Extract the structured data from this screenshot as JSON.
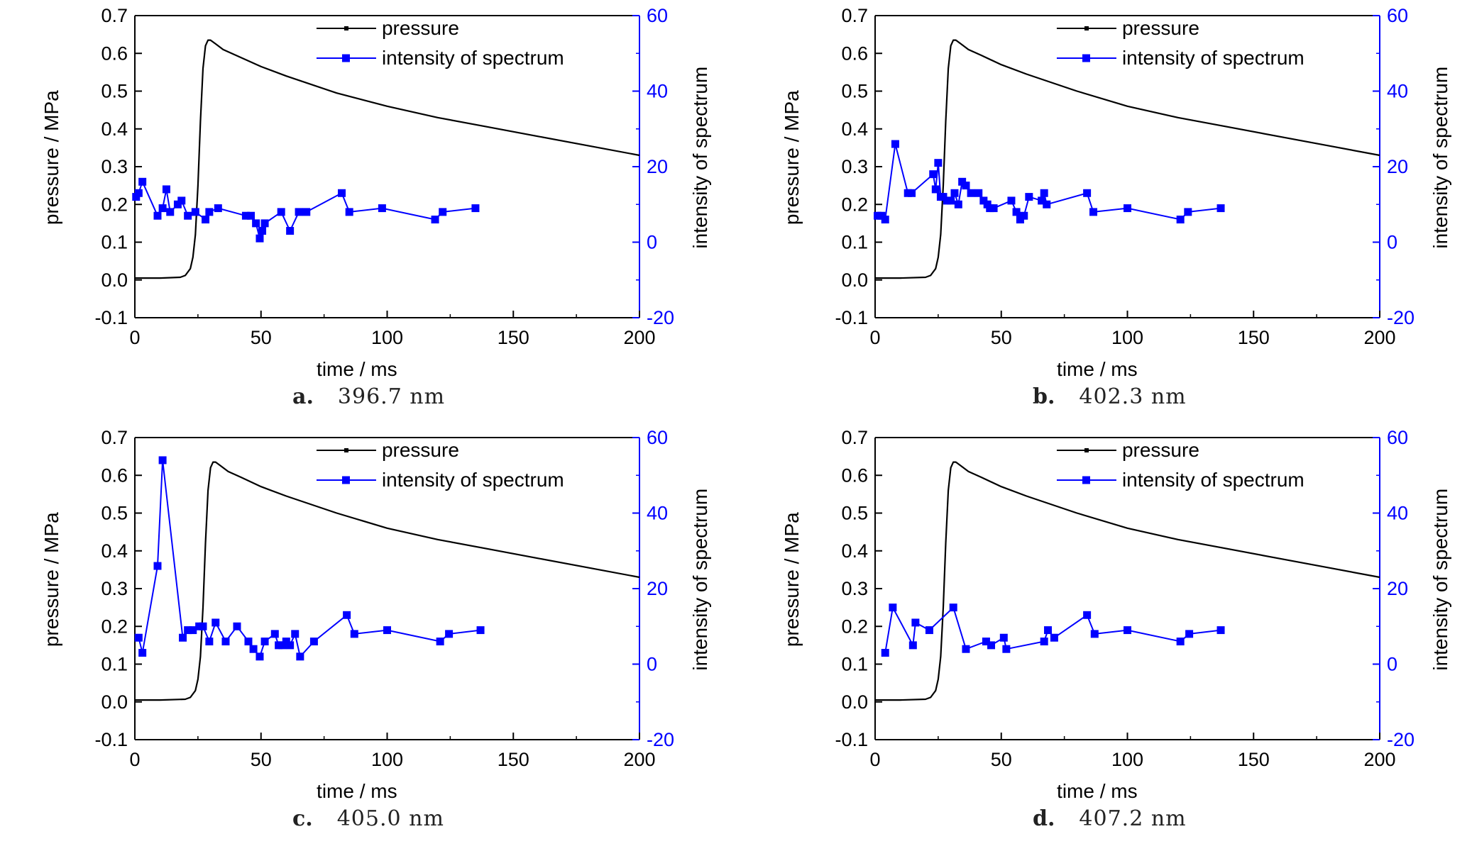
{
  "chart_data": [
    {
      "type": "line",
      "caption_letter": "a.",
      "caption_value": "396.7 nm",
      "xlabel": "time / ms",
      "ylabel": "pressure / MPa",
      "y2label": "intensity of spectrum",
      "xlim": [
        0,
        200
      ],
      "ylim": [
        -0.1,
        0.7
      ],
      "y2lim": [
        -20,
        60
      ],
      "xticks": [
        "0",
        "50",
        "100",
        "150",
        "200"
      ],
      "yticks": [
        "-0.1",
        "0.0",
        "0.1",
        "0.2",
        "0.3",
        "0.4",
        "0.5",
        "0.6",
        "0.7"
      ],
      "y2ticks": [
        "-20",
        "0",
        "20",
        "40",
        "60"
      ],
      "grid": false,
      "legend_position": "top-center",
      "series": [
        {
          "name": "pressure",
          "axis": "left",
          "color": "#000000",
          "x": [
            0,
            10,
            18,
            20,
            22,
            23,
            24,
            25,
            26,
            27,
            28,
            29,
            30,
            32,
            35,
            40,
            50,
            60,
            80,
            100,
            120,
            140,
            160,
            180,
            200
          ],
          "y": [
            0.005,
            0.005,
            0.007,
            0.012,
            0.03,
            0.06,
            0.12,
            0.25,
            0.42,
            0.56,
            0.62,
            0.635,
            0.635,
            0.625,
            0.61,
            0.595,
            0.565,
            0.54,
            0.495,
            0.46,
            0.43,
            0.405,
            0.38,
            0.355,
            0.33
          ]
        },
        {
          "name": "intensity of spectrum",
          "axis": "right",
          "color": "#0000ff",
          "marker": "square",
          "x": [
            0.5,
            1.5,
            3,
            9,
            11,
            12.5,
            14,
            17,
            18.5,
            21,
            24,
            28,
            29.5,
            33,
            44,
            46,
            48,
            49.5,
            50.5,
            51.5,
            58,
            61.5,
            65,
            68,
            82,
            85,
            98,
            119,
            122,
            135
          ],
          "y": [
            12,
            13,
            16,
            7,
            9,
            14,
            8,
            10,
            11,
            7,
            8,
            6,
            8,
            9,
            7,
            7,
            5,
            1,
            3,
            5,
            8,
            3,
            8,
            8,
            13,
            8,
            9,
            6,
            8,
            9
          ]
        }
      ]
    },
    {
      "type": "line",
      "caption_letter": "b.",
      "caption_value": "402.3 nm",
      "xlabel": "time / ms",
      "ylabel": "pressure / MPa",
      "y2label": "intensity of spectrum",
      "xlim": [
        0,
        200
      ],
      "ylim": [
        -0.1,
        0.7
      ],
      "y2lim": [
        -20,
        60
      ],
      "xticks": [
        "0",
        "50",
        "100",
        "150",
        "200"
      ],
      "yticks": [
        "-0.1",
        "0.0",
        "0.1",
        "0.2",
        "0.3",
        "0.4",
        "0.5",
        "0.6",
        "0.7"
      ],
      "y2ticks": [
        "-20",
        "0",
        "20",
        "40",
        "60"
      ],
      "grid": false,
      "legend_position": "top-center",
      "series": [
        {
          "name": "pressure",
          "axis": "left",
          "color": "#000000",
          "x": [
            0,
            10,
            20,
            22,
            24,
            25,
            26,
            27,
            28,
            29,
            30,
            31,
            32,
            34,
            37,
            42,
            50,
            60,
            80,
            100,
            120,
            140,
            160,
            180,
            200
          ],
          "y": [
            0.005,
            0.005,
            0.007,
            0.012,
            0.03,
            0.06,
            0.12,
            0.25,
            0.42,
            0.56,
            0.62,
            0.635,
            0.635,
            0.625,
            0.61,
            0.595,
            0.57,
            0.545,
            0.5,
            0.46,
            0.43,
            0.405,
            0.38,
            0.355,
            0.33
          ]
        },
        {
          "name": "intensity of spectrum",
          "axis": "right",
          "color": "#0000ff",
          "marker": "square",
          "x": [
            1,
            2.5,
            4,
            8,
            13,
            14.5,
            23,
            24,
            25,
            26,
            27,
            28.5,
            30,
            31.5,
            33,
            34.5,
            36,
            38,
            41,
            43,
            44.5,
            45.5,
            47,
            54,
            56,
            57.5,
            59,
            61,
            66,
            67,
            68,
            84,
            86.5,
            100,
            121,
            124,
            137
          ],
          "y": [
            7,
            7,
            6,
            26,
            13,
            13,
            18,
            14,
            21,
            12,
            12,
            11,
            11,
            13,
            10,
            16,
            15,
            13,
            13,
            11,
            10,
            9,
            9,
            11,
            8,
            6,
            7,
            12,
            11,
            13,
            10,
            13,
            8,
            9,
            6,
            8,
            9
          ]
        }
      ]
    },
    {
      "type": "line",
      "caption_letter": "c.",
      "caption_value": "405.0 nm",
      "xlabel": "time / ms",
      "ylabel": "pressure / MPa",
      "y2label": "intensity of spectrum",
      "xlim": [
        0,
        200
      ],
      "ylim": [
        -0.1,
        0.7
      ],
      "y2lim": [
        -20,
        60
      ],
      "xticks": [
        "0",
        "50",
        "100",
        "150",
        "200"
      ],
      "yticks": [
        "-0.1",
        "0.0",
        "0.1",
        "0.2",
        "0.3",
        "0.4",
        "0.5",
        "0.6",
        "0.7"
      ],
      "y2ticks": [
        "-20",
        "0",
        "20",
        "40",
        "60"
      ],
      "grid": false,
      "legend_position": "top-center",
      "series": [
        {
          "name": "pressure",
          "axis": "left",
          "color": "#000000",
          "x": [
            0,
            10,
            20,
            22,
            24,
            25,
            26,
            27,
            28,
            29,
            30,
            31,
            32,
            34,
            37,
            42,
            50,
            60,
            80,
            100,
            120,
            140,
            160,
            180,
            200
          ],
          "y": [
            0.005,
            0.005,
            0.007,
            0.012,
            0.03,
            0.06,
            0.12,
            0.25,
            0.42,
            0.56,
            0.62,
            0.635,
            0.635,
            0.625,
            0.61,
            0.595,
            0.57,
            0.545,
            0.5,
            0.46,
            0.43,
            0.405,
            0.38,
            0.355,
            0.33
          ]
        },
        {
          "name": "intensity of spectrum",
          "axis": "right",
          "color": "#0000ff",
          "marker": "square",
          "x": [
            1.5,
            3,
            9,
            11,
            19,
            21,
            23,
            25.5,
            27,
            29.5,
            32,
            36,
            40.5,
            45,
            47,
            49.5,
            51.5,
            55.5,
            57,
            58.5,
            60,
            61.5,
            63.5,
            65.5,
            71,
            84,
            87,
            100,
            121,
            124.5,
            137
          ],
          "y": [
            7,
            3,
            26,
            54,
            7,
            9,
            9,
            10,
            10,
            6,
            11,
            6,
            10,
            6,
            4,
            2,
            6,
            8,
            5,
            5,
            6,
            5,
            8,
            2,
            6,
            13,
            8,
            9,
            6,
            8,
            9
          ]
        }
      ]
    },
    {
      "type": "line",
      "caption_letter": "d.",
      "caption_value": "407.2 nm",
      "xlabel": "time / ms",
      "ylabel": "pressure / MPa",
      "y2label": "intensity of spectrum",
      "xlim": [
        0,
        200
      ],
      "ylim": [
        -0.1,
        0.7
      ],
      "y2lim": [
        -20,
        60
      ],
      "xticks": [
        "0",
        "50",
        "100",
        "150",
        "200"
      ],
      "yticks": [
        "-0.1",
        "0.0",
        "0.1",
        "0.2",
        "0.3",
        "0.4",
        "0.5",
        "0.6",
        "0.7"
      ],
      "y2ticks": [
        "-20",
        "0",
        "20",
        "40",
        "60"
      ],
      "grid": false,
      "legend_position": "top-center",
      "series": [
        {
          "name": "pressure",
          "axis": "left",
          "color": "#000000",
          "x": [
            0,
            10,
            20,
            22,
            24,
            25,
            26,
            27,
            28,
            29,
            30,
            31,
            32,
            34,
            37,
            42,
            50,
            60,
            80,
            100,
            120,
            140,
            160,
            180,
            200
          ],
          "y": [
            0.005,
            0.005,
            0.007,
            0.012,
            0.03,
            0.06,
            0.12,
            0.25,
            0.42,
            0.56,
            0.62,
            0.635,
            0.635,
            0.625,
            0.61,
            0.595,
            0.57,
            0.545,
            0.5,
            0.46,
            0.43,
            0.405,
            0.38,
            0.355,
            0.33
          ]
        },
        {
          "name": "intensity of spectrum",
          "axis": "right",
          "color": "#0000ff",
          "marker": "square",
          "x": [
            4,
            7,
            15,
            16,
            21.5,
            31,
            36,
            44,
            46,
            51,
            52,
            67,
            68.5,
            71,
            84,
            87,
            100,
            121,
            124.5,
            137
          ],
          "y": [
            3,
            15,
            5,
            11,
            9,
            15,
            4,
            6,
            5,
            7,
            4,
            6,
            9,
            7,
            13,
            8,
            9,
            6,
            8,
            9
          ]
        }
      ]
    }
  ]
}
